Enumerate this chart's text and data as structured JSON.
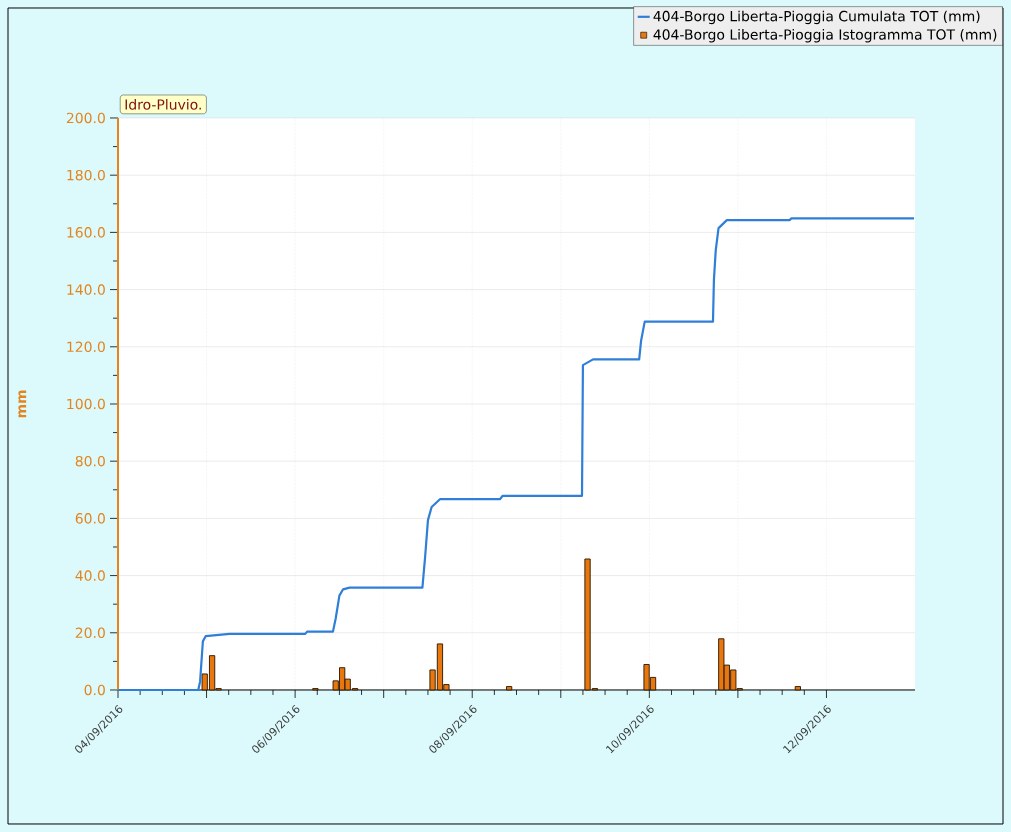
{
  "chart_data": {
    "type": "bar",
    "title": "Idro-Pluvio.",
    "ylabel": "mm",
    "xlim": [
      "2016-09-04",
      "2016-09-13"
    ],
    "ylim": [
      0,
      200
    ],
    "xticks": [
      {
        "value": "2016-09-04",
        "label": "04/09/2016"
      },
      {
        "value": "2016-09-05",
        "label": null
      },
      {
        "value": "2016-09-06",
        "label": "06/09/2016"
      },
      {
        "value": "2016-09-07",
        "label": null
      },
      {
        "value": "2016-09-08",
        "label": "08/09/2016"
      },
      {
        "value": "2016-09-09",
        "label": null
      },
      {
        "value": "2016-09-10",
        "label": "10/09/2016"
      },
      {
        "value": "2016-09-11",
        "label": null
      },
      {
        "value": "2016-09-12",
        "label": "12/09/2016"
      }
    ],
    "yticks": [
      {
        "value": 0,
        "label": "0.0"
      },
      {
        "value": 20,
        "label": "20.0"
      },
      {
        "value": 40,
        "label": "40.0"
      },
      {
        "value": 60,
        "label": "60.0"
      },
      {
        "value": 80,
        "label": "80.0"
      },
      {
        "value": 100,
        "label": "100.0"
      },
      {
        "value": 120,
        "label": "120.0"
      },
      {
        "value": 140,
        "label": "140.0"
      },
      {
        "value": 160,
        "label": "160.0"
      },
      {
        "value": 180,
        "label": "180.0"
      },
      {
        "value": 200,
        "label": "200.0"
      }
    ],
    "grid": true,
    "legend": "top right",
    "series": [
      {
        "name": "404-Borgo Liberta-Pioggia Cumulata TOT (mm)",
        "type": "line",
        "color": "#2f7fd8",
        "x": [
          "2016-09-04T00:00",
          "2016-09-04T21:45",
          "2016-09-04T22:15",
          "2016-09-04T23:00",
          "2016-09-04T23:45",
          "2016-09-05T06:15",
          "2016-09-06T02:45",
          "2016-09-06T03:15",
          "2016-09-06T10:15",
          "2016-09-06T11:00",
          "2016-09-06T12:00",
          "2016-09-06T13:00",
          "2016-09-06T14:45",
          "2016-09-07T10:30",
          "2016-09-07T11:15",
          "2016-09-07T12:00",
          "2016-09-07T13:00",
          "2016-09-07T15:15",
          "2016-09-08T07:30",
          "2016-09-08T08:15",
          "2016-09-09T05:45",
          "2016-09-09T06:00",
          "2016-09-09T08:45",
          "2016-09-09T21:15",
          "2016-09-09T21:45",
          "2016-09-09T22:45",
          "2016-09-10T17:15",
          "2016-09-10T17:30",
          "2016-09-10T18:00",
          "2016-09-10T18:45",
          "2016-09-10T21:00",
          "2016-09-11T14:00",
          "2016-09-11T14:30",
          "2016-09-12T23:45"
        ],
        "values": [
          0,
          0,
          3,
          17,
          18.8,
          19.6,
          19.6,
          20.4,
          20.4,
          25,
          33,
          35.2,
          35.8,
          35.8,
          46.8,
          59.4,
          64,
          66.7,
          66.7,
          67.9,
          67.9,
          113.6,
          115.6,
          115.6,
          122,
          128.8,
          128.8,
          143.4,
          153.8,
          161.5,
          164.3,
          164.3,
          164.9,
          164.9
        ]
      },
      {
        "name": "404-Borgo Liberta-Pioggia Istogramma TOT (mm)",
        "color": "#e8780e",
        "x": [
          "2016-09-04T23:30",
          "2016-09-05T01:30",
          "2016-09-05T03:15",
          "2016-09-06T05:30",
          "2016-09-06T11:00",
          "2016-09-06T12:45",
          "2016-09-06T14:15",
          "2016-09-06T16:15",
          "2016-09-07T13:15",
          "2016-09-07T15:15",
          "2016-09-07T17:00",
          "2016-09-08T10:00",
          "2016-09-09T07:15",
          "2016-09-09T09:15",
          "2016-09-09T23:15",
          "2016-09-10T01:00",
          "2016-09-10T19:30",
          "2016-09-10T21:00",
          "2016-09-10T22:45",
          "2016-09-11T00:30",
          "2016-09-11T16:15"
        ],
        "values": [
          5.6,
          12.0,
          0.5,
          0.5,
          3.2,
          7.8,
          3.8,
          0.5,
          7.0,
          16.1,
          1.9,
          1.2,
          45.8,
          0.5,
          8.9,
          4.4,
          17.9,
          8.7,
          7.0,
          0.5,
          1.2
        ]
      }
    ]
  }
}
